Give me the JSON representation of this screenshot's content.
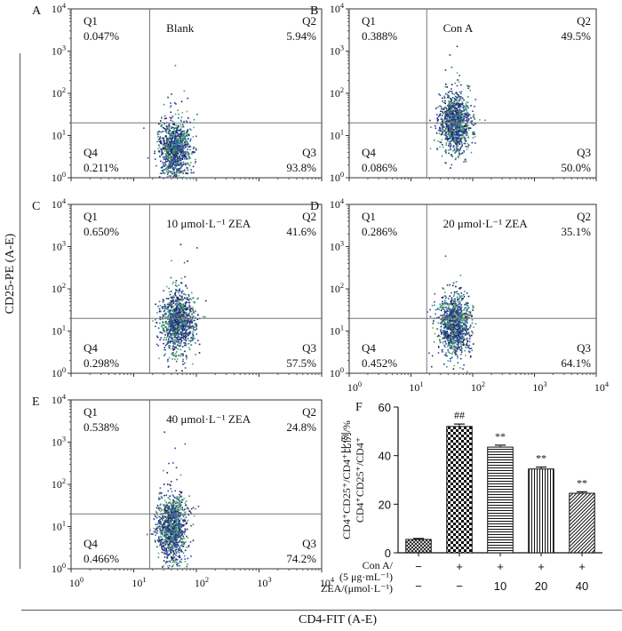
{
  "figure": {
    "y_axis_title": "CD25-PE (A-E)",
    "x_axis_title": "CD4-FIT (A-E)"
  },
  "chart_data": [
    {
      "type": "scatter",
      "panel": "A",
      "treatment": "Blank",
      "quadrants": {
        "Q1": "0.047%",
        "Q2": "5.94%",
        "Q3": "93.8%",
        "Q4": "0.211%"
      },
      "xscale": "log",
      "yscale": "log",
      "xlim": [
        1,
        10000
      ],
      "ylim": [
        1,
        10000
      ],
      "gate": {
        "x": 18,
        "y": 20
      },
      "cluster": {
        "x_center": 45,
        "y_center": 5,
        "x_spread": 0.12,
        "y_spread": 0.35
      }
    },
    {
      "type": "scatter",
      "panel": "B",
      "treatment": "Con A",
      "quadrants": {
        "Q1": "0.388%",
        "Q2": "49.5%",
        "Q3": "50.0%",
        "Q4": "0.086%"
      },
      "xscale": "log",
      "yscale": "log",
      "xlim": [
        1,
        10000
      ],
      "ylim": [
        1,
        10000
      ],
      "gate": {
        "x": 18,
        "y": 20
      },
      "cluster": {
        "x_center": 50,
        "y_center": 20,
        "x_spread": 0.13,
        "y_spread": 0.35
      }
    },
    {
      "type": "scatter",
      "panel": "C",
      "treatment": "10 μmol·L⁻¹ ZEA",
      "quadrants": {
        "Q1": "0.650%",
        "Q2": "41.6%",
        "Q3": "57.5%",
        "Q4": "0.298%"
      },
      "xscale": "log",
      "yscale": "log",
      "xlim": [
        1,
        10000
      ],
      "ylim": [
        1,
        10000
      ],
      "gate": {
        "x": 18,
        "y": 20
      },
      "cluster": {
        "x_center": 50,
        "y_center": 17,
        "x_spread": 0.13,
        "y_spread": 0.35
      }
    },
    {
      "type": "scatter",
      "panel": "D",
      "treatment": "20 μmol·L⁻¹ ZEA",
      "quadrants": {
        "Q1": "0.286%",
        "Q2": "35.1%",
        "Q3": "64.1%",
        "Q4": "0.452%"
      },
      "xscale": "log",
      "yscale": "log",
      "xlim": [
        1,
        10000
      ],
      "ylim": [
        1,
        10000
      ],
      "gate": {
        "x": 18,
        "y": 20
      },
      "cluster": {
        "x_center": 50,
        "y_center": 14,
        "x_spread": 0.13,
        "y_spread": 0.35
      }
    },
    {
      "type": "scatter",
      "panel": "E",
      "treatment": "40 μmol·L⁻¹ ZEA",
      "quadrants": {
        "Q1": "0.538%",
        "Q2": "24.8%",
        "Q3": "74.2%",
        "Q4": "0.466%"
      },
      "xscale": "log",
      "yscale": "log",
      "xlim": [
        1,
        10000
      ],
      "ylim": [
        1,
        10000
      ],
      "gate": {
        "x": 18,
        "y": 20
      },
      "cluster": {
        "x_center": 40,
        "y_center": 10,
        "x_spread": 0.12,
        "y_spread": 0.4
      }
    },
    {
      "type": "bar",
      "panel": "F",
      "ylabel_lines": [
        "CD4⁺CD25⁺/CD4⁺比例/%",
        "CD4⁺CD25⁺/CD4⁺"
      ],
      "ylim": [
        0,
        60
      ],
      "yticks": [
        0,
        20,
        40,
        60
      ],
      "values": [
        5.5,
        52,
        43.5,
        34.5,
        24.5
      ],
      "errors": [
        0.4,
        1.0,
        0.8,
        0.8,
        0.6
      ],
      "patterns": [
        "crosshatch",
        "checker",
        "horizontal",
        "vertical",
        "diagonal"
      ],
      "significance": [
        "",
        "##",
        "**",
        "**",
        "**"
      ],
      "row1_label": "Con A/\n(5 μg·mL⁻¹)",
      "row1_values": [
        "−",
        "+",
        "+",
        "+",
        "+"
      ],
      "row2_label": "ZEA/(μmol·L⁻¹)",
      "row2_values": [
        "−",
        "−",
        "10",
        "20",
        "40"
      ]
    }
  ]
}
